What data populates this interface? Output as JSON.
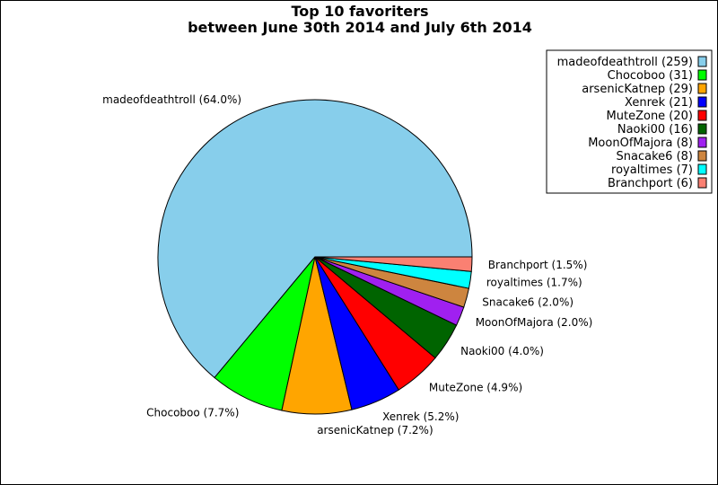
{
  "chart_data": {
    "type": "pie",
    "title": "Top 10 favoriters",
    "subtitle": "between June 30th 2014 and July 6th 2014",
    "slices": [
      {
        "name": "madeofdeathtroll",
        "value": 259,
        "percent_label": "madeofdeathtroll (64.0%)",
        "legend_label": "madeofdeathtroll (259)",
        "color": "#87CEEB"
      },
      {
        "name": "Chocoboo",
        "value": 31,
        "percent_label": "Chocoboo (7.7%)",
        "legend_label": "Chocoboo (31)",
        "color": "#00FF00"
      },
      {
        "name": "arsenicKatnep",
        "value": 29,
        "percent_label": "arsenicKatnep (7.2%)",
        "legend_label": "arsenicKatnep (29)",
        "color": "#FFA500"
      },
      {
        "name": "Xenrek",
        "value": 21,
        "percent_label": "Xenrek (5.2%)",
        "legend_label": "Xenrek (21)",
        "color": "#0000FF"
      },
      {
        "name": "MuteZone",
        "value": 20,
        "percent_label": "MuteZone (4.9%)",
        "legend_label": "MuteZone (20)",
        "color": "#FF0000"
      },
      {
        "name": "Naoki00",
        "value": 16,
        "percent_label": "Naoki00 (4.0%)",
        "legend_label": "Naoki00 (16)",
        "color": "#006400"
      },
      {
        "name": "MoonOfMajora",
        "value": 8,
        "percent_label": "MoonOfMajora (2.0%)",
        "legend_label": "MoonOfMajora (8)",
        "color": "#A020F0"
      },
      {
        "name": "Snacake6",
        "value": 8,
        "percent_label": "Snacake6 (2.0%)",
        "legend_label": "Snacake6 (8)",
        "color": "#CD853F"
      },
      {
        "name": "royaltimes",
        "value": 7,
        "percent_label": "royaltimes (1.7%)",
        "legend_label": "royaltimes (7)",
        "color": "#00FFFF"
      },
      {
        "name": "Branchport",
        "value": 6,
        "percent_label": "Branchport (1.5%)",
        "legend_label": "Branchport (6)",
        "color": "#FA8072"
      }
    ],
    "legend_placement": "top-right"
  }
}
